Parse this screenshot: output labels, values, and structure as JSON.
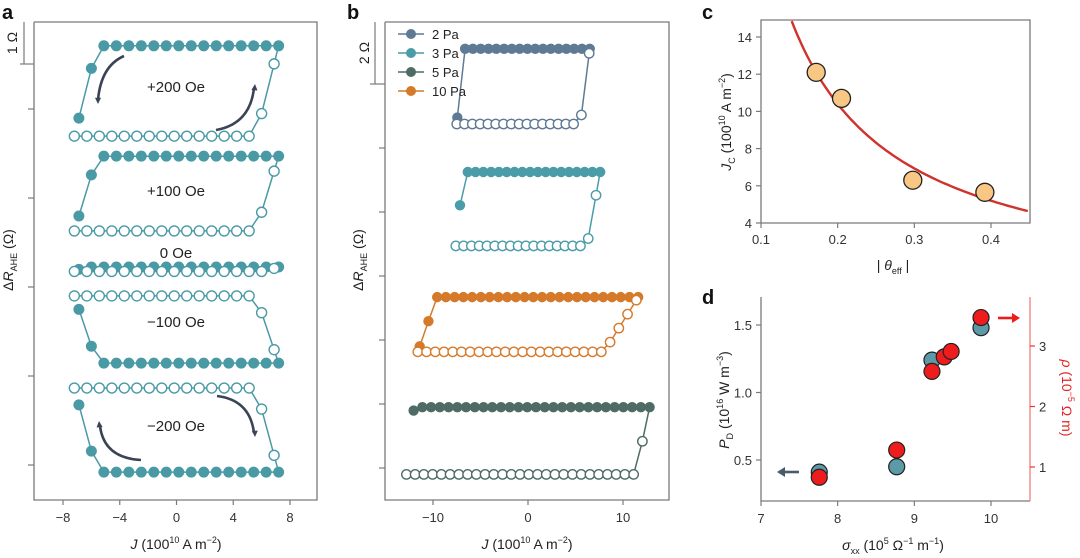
{
  "chart_data": [
    {
      "panel": "a",
      "type": "line",
      "xlabel": "J (10^10 A m^-2)",
      "ylabel": "ΔR_AHE (Ω)",
      "xlim": [
        -10,
        10
      ],
      "xticks": [
        -8,
        -4,
        0,
        4,
        8
      ],
      "xtick_labels": [
        "−8",
        "−4",
        "0",
        "4",
        "8"
      ],
      "scale_bar_label": "1 Ω",
      "color": "#4a9aa6",
      "note": "curves vertically offset; y values are relative Ω",
      "series": [
        {
          "name": "+200 Oe",
          "label": "+200 Oe",
          "high": 9.42,
          "low": 7.39,
          "jmin": -7.2,
          "jmax": 7.2,
          "sense": "positive"
        },
        {
          "name": "+100 Oe",
          "label": "+100 Oe",
          "high": 6.94,
          "low": 5.26,
          "jmin": -7.2,
          "jmax": 7.2,
          "sense": "positive"
        },
        {
          "name": "0 Oe",
          "label": "0 Oe",
          "high": 4.45,
          "low": 4.35,
          "jmin": -7.2,
          "jmax": 7.2,
          "sense": "flat"
        },
        {
          "name": "−100 Oe",
          "label": "−100 Oe",
          "high": 3.8,
          "low": 2.29,
          "jmin": -7.2,
          "jmax": 7.2,
          "sense": "negative"
        },
        {
          "name": "−200 Oe",
          "label": "−200 Oe",
          "high": 1.73,
          "low": -0.16,
          "jmin": -7.2,
          "jmax": 7.2,
          "sense": "negative"
        }
      ]
    },
    {
      "panel": "b",
      "type": "line",
      "xlabel": "J (10^10 A m^-2)",
      "ylabel": "ΔR_AHE (Ω)",
      "xlim": [
        -15,
        15
      ],
      "xticks": [
        -10,
        0,
        10
      ],
      "xtick_labels": [
        "−10",
        "0",
        "10"
      ],
      "scale_bar_label": "2 Ω",
      "legend": "top-left",
      "series": [
        {
          "name": "2 Pa",
          "color": "#5f7a94",
          "high": 13.1,
          "low": 10.75,
          "jmin": -7.5,
          "jmax": 6.5,
          "switch_pos": 5.5,
          "switch_neg": -6.8
        },
        {
          "name": "3 Pa",
          "color": "#4a9ca8",
          "high": 9.25,
          "low": 6.94,
          "jmin": -7.6,
          "jmax": 7.6,
          "switch_pos": 6.2,
          "switch_neg": -6.8
        },
        {
          "name": "5 Pa",
          "color": "#4f6b65",
          "high": 1.9,
          "low": -0.2,
          "jmin": -12.8,
          "jmax": 12.8,
          "switch_pos": 11.3,
          "switch_neg": -12.0
        },
        {
          "name": "10 Pa",
          "color": "#d47a2a",
          "high": 5.34,
          "low": 3.63,
          "jmin": -11.6,
          "jmax": 11.6,
          "switch_pos": 8.0,
          "switch_neg": -9.6
        }
      ]
    },
    {
      "panel": "c",
      "type": "scatter",
      "xlabel": "|θ_eff|",
      "ylabel": "J_C (10^10 A m^-2)",
      "xlim": [
        0.1,
        0.45
      ],
      "ylim": [
        4,
        15
      ],
      "xticks": [
        0.1,
        0.2,
        0.3,
        0.4
      ],
      "yticks": [
        4,
        6,
        8,
        10,
        12,
        14
      ],
      "x": [
        0.172,
        0.205,
        0.298,
        0.392
      ],
      "y": [
        12.1,
        10.7,
        6.3,
        5.65
      ],
      "marker_color": "#f9c784",
      "fit": {
        "type": "inverse",
        "a": 2.08,
        "color": "#d0322c",
        "description": "J_C = a / |θ_eff|"
      }
    },
    {
      "panel": "d",
      "type": "scatter",
      "xlabel": "σ_xx (10^5 Ω^-1 m^-1)",
      "ylabel_left": "P_D (10^16 W m^-3)",
      "ylabel_right": "ρ (10^-5 Ω m)",
      "xlim": [
        7,
        10.5
      ],
      "ylim_left": [
        0.2,
        1.71
      ],
      "ylim_right": [
        0.44,
        3.81
      ],
      "xticks": [
        7,
        8,
        9,
        10
      ],
      "yticks_left": [
        0.5,
        1.0,
        1.5
      ],
      "yticks_right": [
        1,
        2,
        3
      ],
      "series": [
        {
          "name": "P_D",
          "axis": "left",
          "color": "#5b9aa6",
          "x": [
            7.76,
            8.77,
            9.23,
            9.87
          ],
          "y": [
            0.41,
            0.45,
            1.24,
            1.48
          ]
        },
        {
          "name": "ρ",
          "axis": "right",
          "color": "#ee1c1c",
          "x": [
            7.76,
            8.77,
            9.23,
            9.39,
            9.48,
            9.87
          ],
          "y": [
            0.83,
            1.28,
            2.58,
            2.82,
            2.91,
            3.47
          ]
        }
      ]
    }
  ],
  "labels": {
    "panel_a": "a",
    "panel_b": "b",
    "panel_c": "c",
    "panel_d": "d",
    "a_xlabel_main": "J",
    "a_xlabel_unit": " (10",
    "exp10": "10",
    "unit_Am": " A m",
    "exp_m2": "−2",
    "close_paren": ")",
    "a_ylabel_delta": "ΔR",
    "a_ylabel_sub": "AHE",
    "a_ylabel_unit": " (Ω)",
    "scale_a": "1 Ω",
    "scale_b": "2 Ω",
    "c_xlabel": "| θ",
    "c_xlabel_sub": "eff",
    "c_xlabel_end": " |",
    "c_ylabel_J": "J",
    "c_ylabel_sub": "C",
    "c_ylabel_unit": " (10",
    "d_xlabel": "σ",
    "d_xlabel_sub": "xx",
    "d_xlabel_unit": " (10",
    "d_x_exp": "5",
    "d_x_unit2": " Ω",
    "d_x_exp2": "−1",
    "d_x_unit3": " m",
    "d_x_exp3": "−1",
    "d_yl_P": "P",
    "d_yl_sub": "D",
    "d_yl_unit": " (10",
    "d_yl_exp": "16",
    "d_yl_unit2": " W m",
    "d_yl_exp2": "−3",
    "d_yr_rho": "ρ",
    "d_yr_unit": " (10",
    "d_yr_exp": "−5",
    "d_yr_unit2": " Ω m)"
  }
}
